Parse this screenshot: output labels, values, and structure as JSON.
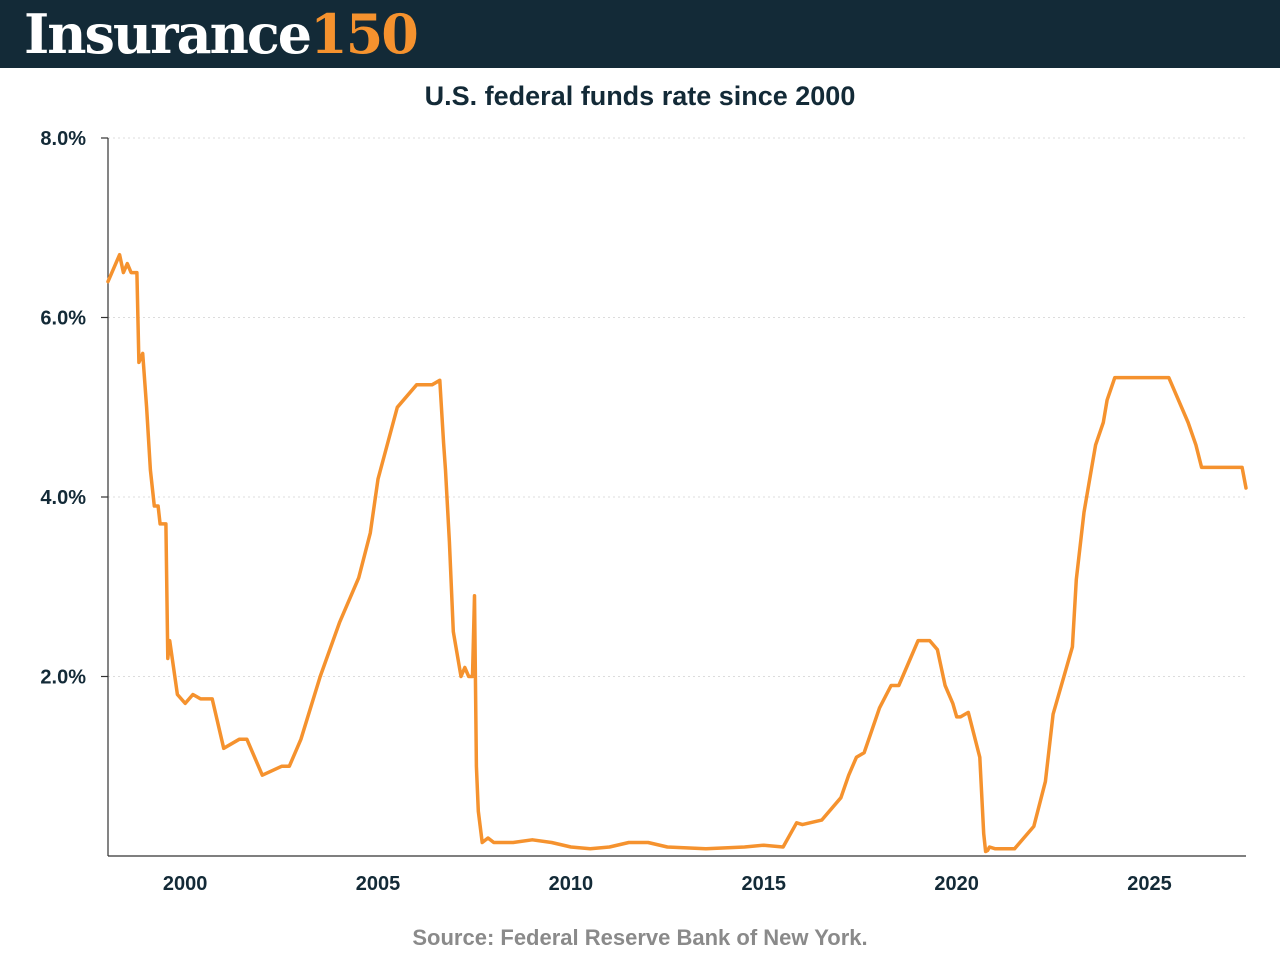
{
  "header": {
    "logo_word": "Insurance",
    "logo_number": "150",
    "logo_word_color": "#ffffff",
    "logo_number_color": "#f5922e",
    "background_color": "#132a37"
  },
  "source": "Source: Federal Reserve Bank of New York.",
  "chart_data": {
    "type": "line",
    "title": "U.S. federal funds rate since 2000",
    "xlabel": "",
    "ylabel": "",
    "xlim": [
      1998.0,
      2027.5
    ],
    "ylim": [
      0,
      8
    ],
    "x_ticks": [
      2000,
      2005,
      2010,
      2015,
      2020,
      2025
    ],
    "x_tick_labels": [
      "2000",
      "2005",
      "2010",
      "2015",
      "2020",
      "2025"
    ],
    "y_ticks": [
      2,
      4,
      6,
      8
    ],
    "y_tick_labels": [
      "2.0%",
      "4.0%",
      "6.0%",
      "8.0%"
    ],
    "grid": "horizontal dotted",
    "legend": "none",
    "series_color": "#f5922e",
    "series": [
      {
        "x": [
          1998.0,
          1998.3,
          1998.4,
          1998.5,
          1998.6,
          1998.75,
          1998.8,
          1998.9,
          1999.0,
          1999.1,
          1999.2,
          1999.3,
          1999.35,
          1999.5,
          1999.55,
          1999.6,
          1999.8,
          2000.0,
          2000.2,
          2000.4,
          2000.7,
          2001.0,
          2001.4,
          2001.6,
          2002.0,
          2002.5,
          2002.7,
          2003.0,
          2003.5,
          2004.0,
          2004.5,
          2004.8,
          2005.0,
          2005.5,
          2006.0,
          2006.3,
          2006.4,
          2006.6,
          2006.7,
          2006.75,
          2006.85,
          2006.95,
          2007.15,
          2007.25,
          2007.35,
          2007.45,
          2007.5,
          2007.55,
          2007.6,
          2007.7,
          2007.85,
          2008.0,
          2008.5,
          2009.0,
          2009.5,
          2010.0,
          2010.5,
          2011.0,
          2011.5,
          2012.0,
          2012.5,
          2013.0,
          2013.5,
          2014.0,
          2014.5,
          2015.0,
          2015.5,
          2015.85,
          2016.0,
          2016.5,
          2017.0,
          2017.2,
          2017.4,
          2017.6,
          2017.8,
          2018.0,
          2018.3,
          2018.5,
          2018.8,
          2019.0,
          2019.3,
          2019.5,
          2019.7,
          2019.9,
          2020.0,
          2020.1,
          2020.3,
          2020.6,
          2020.7,
          2020.75,
          2020.8,
          2020.85,
          2021.0,
          2021.5,
          2022.0,
          2022.3,
          2022.5,
          2023.0,
          2023.1,
          2023.3,
          2023.5,
          2023.6,
          2023.8,
          2023.9,
          2024.1,
          2024.3,
          2024.5,
          2024.7,
          2024.9,
          2025.5,
          2026.0,
          2026.2,
          2026.35,
          2026.6,
          2027.4,
          2027.5
        ],
        "y": [
          6.4,
          6.7,
          6.5,
          6.6,
          6.5,
          6.5,
          5.5,
          5.6,
          5.0,
          4.3,
          3.9,
          3.9,
          3.7,
          3.7,
          2.2,
          2.4,
          1.8,
          1.7,
          1.8,
          1.75,
          1.75,
          1.2,
          1.3,
          1.3,
          0.9,
          1.0,
          1.0,
          1.3,
          2.0,
          2.6,
          3.1,
          3.6,
          4.2,
          5.0,
          5.25,
          5.25,
          5.25,
          5.3,
          4.6,
          4.3,
          3.5,
          2.5,
          2.0,
          2.1,
          2.0,
          2.0,
          2.9,
          1.0,
          0.5,
          0.15,
          0.2,
          0.15,
          0.15,
          0.18,
          0.15,
          0.1,
          0.08,
          0.1,
          0.15,
          0.15,
          0.1,
          0.09,
          0.08,
          0.09,
          0.1,
          0.12,
          0.1,
          0.37,
          0.35,
          0.4,
          0.65,
          0.9,
          1.1,
          1.15,
          1.4,
          1.65,
          1.9,
          1.9,
          2.2,
          2.4,
          2.4,
          2.3,
          1.9,
          1.7,
          1.55,
          1.55,
          1.6,
          1.1,
          0.25,
          0.05,
          0.06,
          0.1,
          0.08,
          0.08,
          0.33,
          0.83,
          1.58,
          2.33,
          3.08,
          3.83,
          4.33,
          4.58,
          4.83,
          5.08,
          5.33,
          5.33,
          5.33,
          5.33,
          5.33,
          5.33,
          4.83,
          4.58,
          4.33,
          4.33,
          4.33,
          4.1
        ]
      }
    ]
  }
}
